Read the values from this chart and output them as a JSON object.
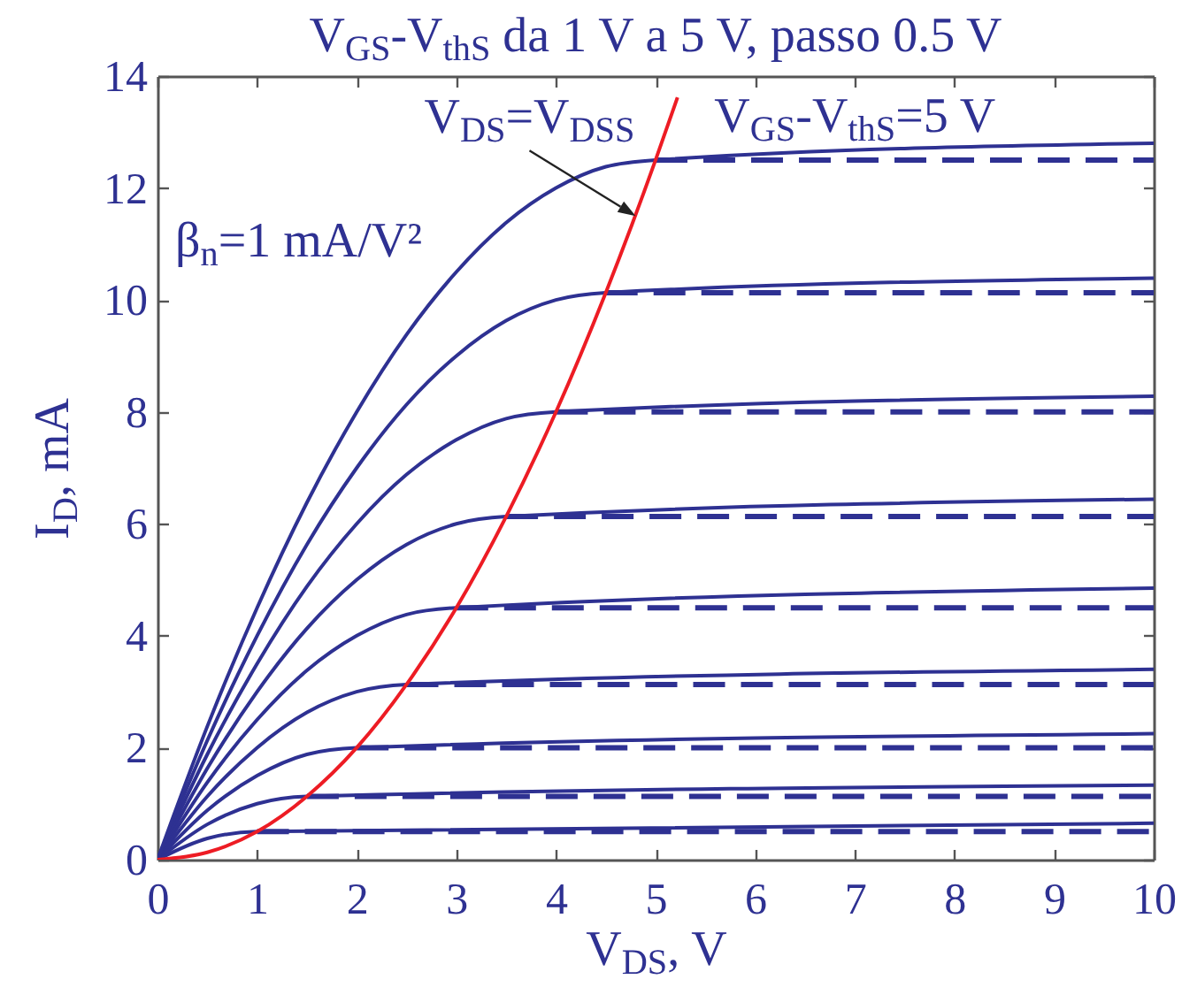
{
  "chart_data": {
    "type": "line",
    "title": "V$_{GS}$-V$_{thS}$ da 1 V a 5 V, passo 0.5 V",
    "xlabel": "V$_{DS}$, V",
    "ylabel": "I$_{D}$, mA",
    "annotations": [
      {
        "text": "V$_{DS}$=V$_{DSS}$",
        "x": 4.8,
        "y": 11.5
      },
      {
        "text": "V$_{GS}$-V$_{thS}$=5 V",
        "x": 7,
        "y": 12.6
      },
      "β$_{n}$=1 mA/V²"
    ],
    "xlim": [
      0,
      10
    ],
    "xticks": [
      0,
      1,
      2,
      3,
      4,
      5,
      6,
      7,
      8,
      9,
      10
    ],
    "ylim": [
      0,
      14
    ],
    "yticks": [
      0,
      2,
      4,
      6,
      8,
      10,
      12,
      14
    ],
    "line_style": "solid",
    "series": [
      {
        "color": "#2e3192",
        "x": [
          0,
          0.5,
          1,
          10
        ],
        "values": [
          0,
          0.38,
          0.5,
          0.65
        ]
      },
      {
        "color": "#2e3192",
        "x": [
          0,
          0.5,
          1,
          1.5,
          10
        ],
        "values": [
          0,
          0.63,
          1,
          1.13,
          1.33
        ]
      },
      {
        "color": "#2e3192",
        "x": [
          0,
          0.5,
          1,
          1.5,
          2,
          10
        ],
        "values": [
          0,
          0.88,
          1.5,
          1.88,
          2,
          2.25
        ]
      },
      {
        "color": "#2e3192",
        "x": [
          0,
          0.5,
          1,
          1.5,
          2,
          2.5,
          10
        ],
        "values": [
          0,
          1.13,
          2,
          2.63,
          3,
          3.13,
          3.4
        ]
      },
      {
        "color": "#2e3192",
        "x": [
          0,
          0.5,
          1,
          1.5,
          2,
          2.5,
          3,
          10
        ],
        "values": [
          0,
          1.38,
          2.5,
          3.38,
          4,
          4.38,
          4.5,
          4.85
        ]
      },
      {
        "color": "#2e3192",
        "x": [
          0,
          0.5,
          1,
          1.5,
          2,
          2.5,
          3,
          3.5,
          10
        ],
        "values": [
          0,
          1.63,
          3,
          4.13,
          5,
          5.63,
          6,
          6.13,
          6.44
        ]
      },
      {
        "color": "#2e3192",
        "x": [
          0,
          0.5,
          1,
          1.5,
          2,
          2.5,
          3,
          3.5,
          4,
          10
        ],
        "values": [
          0,
          1.88,
          3.5,
          4.88,
          6,
          6.88,
          7.5,
          7.88,
          8,
          8.28
        ]
      },
      {
        "color": "#2e3192",
        "x": [
          0,
          0.5,
          1,
          1.5,
          2,
          2.5,
          3,
          3.5,
          4,
          4.5,
          10
        ],
        "values": [
          0,
          2.13,
          4,
          5.63,
          7,
          8.13,
          9,
          9.63,
          10,
          10.13,
          10.39
        ]
      },
      {
        "color": "#2e3192",
        "x": [
          0,
          0.5,
          1,
          1.5,
          2,
          2.5,
          3,
          3.5,
          4,
          4.5,
          5,
          10
        ],
        "values": [
          0,
          2.38,
          4.5,
          6.38,
          8,
          9.38,
          10.5,
          11.38,
          12,
          12.38,
          12.5,
          12.8
        ]
      },
      {
        "color": "#2e3192",
        "line_style": "dashed",
        "x": [
          1,
          10
        ],
        "values": [
          0.5,
          0.5
        ]
      },
      {
        "color": "#2e3192",
        "line_style": "dashed",
        "x": [
          1.5,
          10
        ],
        "values": [
          1.13,
          1.13
        ]
      },
      {
        "color": "#2e3192",
        "line_style": "dashed",
        "x": [
          2,
          10
        ],
        "values": [
          2,
          2
        ]
      },
      {
        "color": "#2e3192",
        "line_style": "dashed",
        "x": [
          2.5,
          10
        ],
        "values": [
          3.13,
          3.13
        ]
      },
      {
        "color": "#2e3192",
        "line_style": "dashed",
        "x": [
          3,
          10
        ],
        "values": [
          4.5,
          4.5
        ]
      },
      {
        "color": "#2e3192",
        "line_style": "dashed",
        "x": [
          3.5,
          10
        ],
        "values": [
          6.13,
          6.13
        ]
      },
      {
        "color": "#2e3192",
        "line_style": "dashed",
        "x": [
          4,
          10
        ],
        "values": [
          8,
          8
        ]
      },
      {
        "color": "#2e3192",
        "line_style": "dashed",
        "x": [
          4.5,
          10
        ],
        "values": [
          10.13,
          10.13
        ]
      },
      {
        "color": "#2e3192",
        "line_style": "dashed",
        "x": [
          5,
          10
        ],
        "values": [
          12.5,
          12.5
        ]
      },
      {
        "color": "#ed1c24",
        "x": [
          0,
          0.5,
          1,
          1.5,
          2,
          2.5,
          3,
          3.5,
          4,
          4.5,
          5,
          5.22
        ],
        "values": [
          0,
          0.13,
          0.5,
          1.13,
          2,
          3.13,
          4.5,
          6.13,
          8,
          10.13,
          12.5,
          13.62
        ]
      }
    ]
  }
}
